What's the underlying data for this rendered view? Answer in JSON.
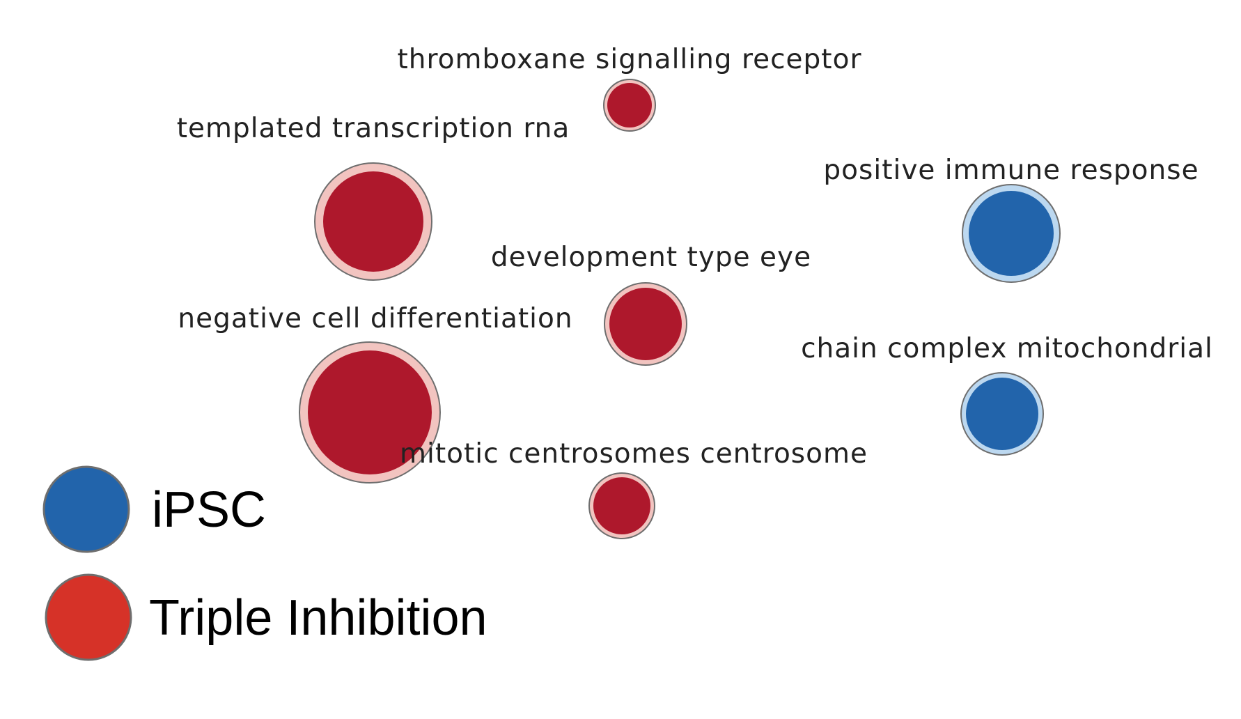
{
  "colors": {
    "ipsc": "#2264ab",
    "ipsc_halo": "#bcd8f0",
    "triple": "#ae182c",
    "triple_halo": "#f2c4c0",
    "legend_triple": "#d63228",
    "outline": "#6e6e6e"
  },
  "nodes": [
    {
      "id": "thromboxane",
      "label": "thromboxane signalling receptor",
      "group": "Triple Inhibition"
    },
    {
      "id": "templated",
      "label": "templated transcription rna",
      "group": "Triple Inhibition"
    },
    {
      "id": "positive",
      "label": "positive immune response",
      "group": "iPSC"
    },
    {
      "id": "development",
      "label": "development type eye",
      "group": "Triple Inhibition"
    },
    {
      "id": "negative",
      "label": "negative cell differentiation",
      "group": "Triple Inhibition"
    },
    {
      "id": "chain",
      "label": "chain complex mitochondrial",
      "group": "iPSC"
    },
    {
      "id": "mitotic",
      "label": "mitotic centrosomes centrosome",
      "group": "Triple Inhibition"
    }
  ],
  "legend": [
    {
      "label": "iPSC",
      "color_key": "ipsc"
    },
    {
      "label": "Triple Inhibition",
      "color_key": "legend_triple"
    }
  ]
}
